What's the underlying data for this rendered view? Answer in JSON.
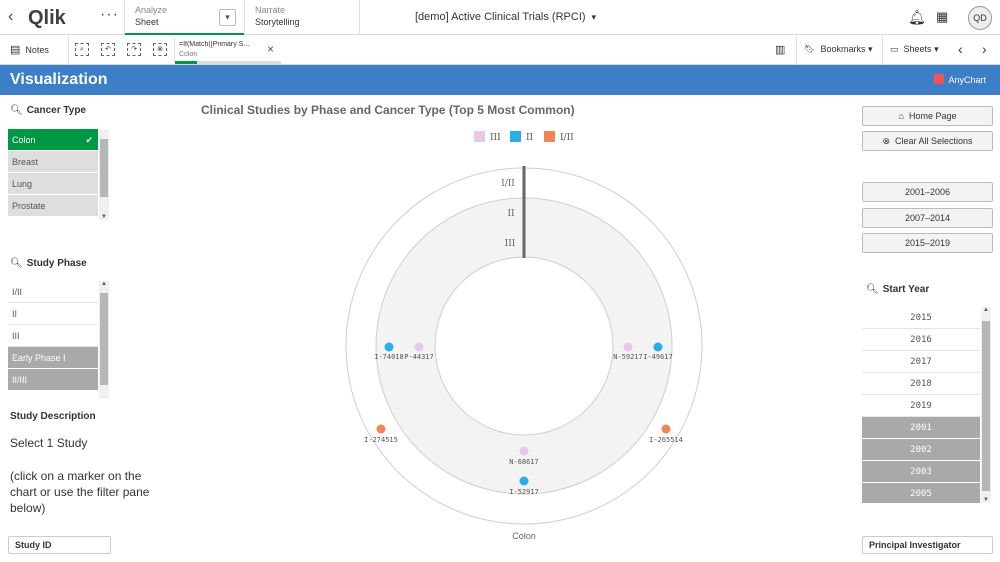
{
  "topbar": {
    "back_icon": "chevron-left-icon",
    "logo": "Qlik",
    "analyze_label": "Analyze",
    "analyze_value": "Sheet",
    "narrate_label": "Narrate",
    "narrate_value": "Storytelling",
    "app_title": "[demo] Active Clinical Trials (RPCI)",
    "user_initials": "QD"
  },
  "toolbar": {
    "notes_label": "Notes",
    "selection_field": "=If(Match([Primary S...",
    "selection_value": "Colon",
    "bookmarks_label": "Bookmarks",
    "sheets_label": "Sheets"
  },
  "sheet": {
    "title": "Visualization",
    "anychart_label": "AnyChart"
  },
  "cancer_type": {
    "title": "Cancer Type",
    "items": [
      {
        "label": "Colon",
        "state": "sel"
      },
      {
        "label": "Breast",
        "state": "alt"
      },
      {
        "label": "Lung",
        "state": "alt"
      },
      {
        "label": "Prostate",
        "state": "alt"
      }
    ]
  },
  "study_phase": {
    "title": "Study Phase",
    "items": [
      {
        "label": "I/II",
        "state": "pos"
      },
      {
        "label": "II",
        "state": "pos"
      },
      {
        "label": "III",
        "state": "pos"
      },
      {
        "label": "Early Phase I",
        "state": "exc"
      },
      {
        "label": "II/III",
        "state": "exc"
      }
    ]
  },
  "study_description": {
    "title": "Study Description",
    "line1": "Select 1 Study",
    "line2": "(click on a marker on the chart or use the filter pane below)"
  },
  "study_id_label": "Study ID",
  "buttons": {
    "home": "Home Page",
    "clear": "Clear All Selections",
    "periods": [
      "2001–2006",
      "2007–2014",
      "2015–2019"
    ]
  },
  "start_year": {
    "title": "Start Year",
    "items": [
      {
        "label": "2015",
        "state": "pos"
      },
      {
        "label": "2016",
        "state": "pos"
      },
      {
        "label": "2017",
        "state": "pos"
      },
      {
        "label": "2018",
        "state": "pos"
      },
      {
        "label": "2019",
        "state": "pos"
      },
      {
        "label": "2001",
        "state": "exc"
      },
      {
        "label": "2002",
        "state": "exc"
      },
      {
        "label": "2003",
        "state": "exc"
      },
      {
        "label": "2005",
        "state": "exc"
      }
    ]
  },
  "principal_investigator_label": "Principal Investigator",
  "chart_data": {
    "type": "scatter",
    "title": "Clinical Studies by Phase and Cancer Type (Top 5 Most Common)",
    "category": "Colon",
    "rings": [
      "I/II",
      "II",
      "III"
    ],
    "series": [
      {
        "name": "III",
        "color": "#e9c8ec"
      },
      {
        "name": "II",
        "color": "#2aaee8"
      },
      {
        "name": "I/II",
        "color": "#f18553"
      }
    ],
    "points": [
      {
        "id": "I-74018",
        "phase": "II"
      },
      {
        "id": "P-44317",
        "phase": "III"
      },
      {
        "id": "N-59217",
        "phase": "III"
      },
      {
        "id": "I-49617",
        "phase": "II"
      },
      {
        "id": "I-274515",
        "phase": "I/II"
      },
      {
        "id": "I-265514",
        "phase": "I/II"
      },
      {
        "id": "N-68617",
        "phase": "III"
      },
      {
        "id": "I-52917",
        "phase": "II"
      }
    ]
  }
}
